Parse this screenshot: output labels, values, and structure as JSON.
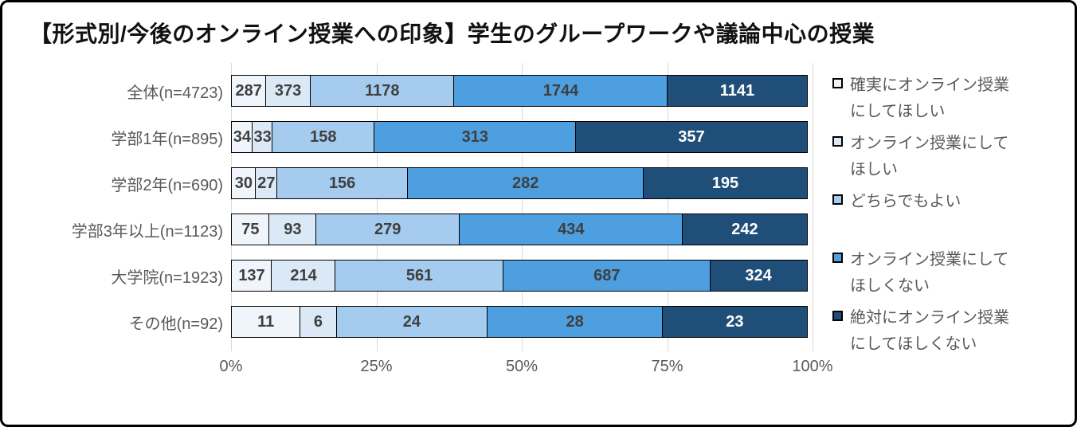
{
  "title": "【形式別/今後のオンライン授業への印象】学生のグループワークや議論中心の授業",
  "chart_data": {
    "type": "bar",
    "subtype": "horizontal-100-percent-stacked",
    "title": "【形式別/今後のオンライン授業への印象】学生のグループワークや議論中心の授業",
    "categories": [
      "全体(n=4723)",
      "学部1年(n=895)",
      "学部2年(n=690)",
      "学部3年以上(n=1123)",
      "大学院(n=1923)",
      "その他(n=92)"
    ],
    "series": [
      {
        "name": "確実にオンライン授業にしてほしい",
        "color": "#eff5fb",
        "label_color": "#3f3f3f",
        "values": [
          287,
          34,
          30,
          75,
          137,
          11
        ]
      },
      {
        "name": "オンライン授業にしてほしい",
        "color": "#dbe9f6",
        "label_color": "#3f3f3f",
        "values": [
          373,
          33,
          27,
          93,
          214,
          6
        ]
      },
      {
        "name": "どちらでもよい",
        "color": "#a5cbee",
        "label_color": "#3f3f3f",
        "values": [
          1178,
          158,
          156,
          279,
          561,
          24
        ]
      },
      {
        "name": "オンライン授業にしてほしくない",
        "color": "#4d9fe0",
        "label_color": "#3f3f3f",
        "values": [
          1744,
          313,
          282,
          434,
          687,
          28
        ]
      },
      {
        "name": "絶対にオンライン授業にしてほしくない",
        "color": "#1f4e79",
        "label_color": "#ffffff",
        "values": [
          1141,
          357,
          195,
          242,
          324,
          23
        ]
      }
    ],
    "x_ticks": [
      "0%",
      "25%",
      "50%",
      "75%",
      "100%"
    ],
    "xlim": [
      0,
      100
    ],
    "grid": true,
    "gridline_color": "#d9d9d9",
    "legend_position": "right",
    "bar_border_color": "#000000",
    "axis_text_color": "#595959"
  }
}
